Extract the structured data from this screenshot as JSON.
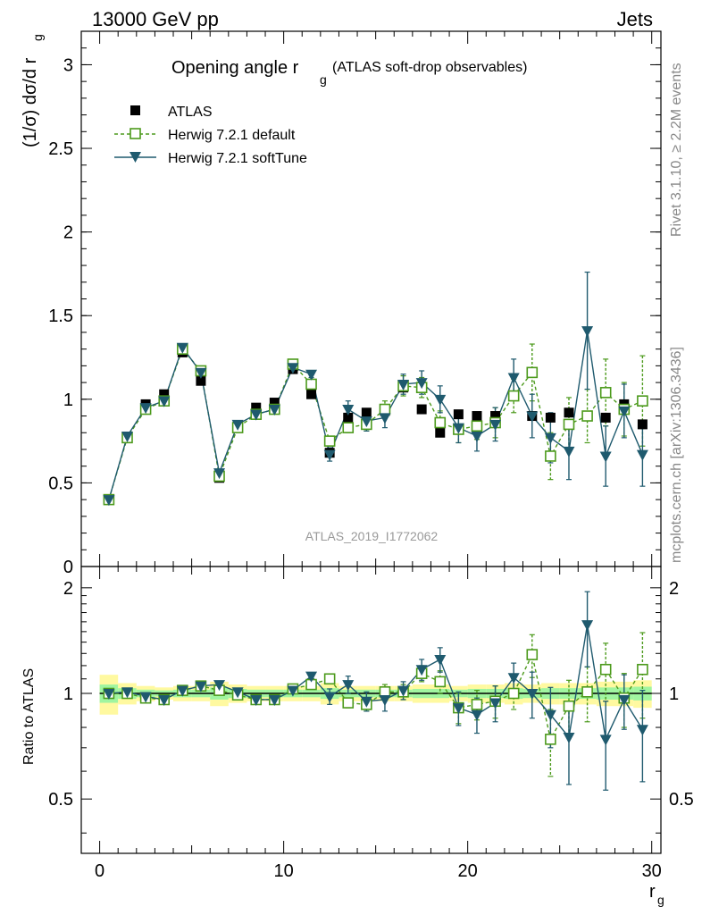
{
  "header": {
    "left": "13000 GeV pp",
    "right": "Jets"
  },
  "side_text": {
    "rivet": "Rivet 3.1.10, ≥ 2.2M events",
    "mcplots": "mcplots.cern.ch [arXiv:1306.3436]"
  },
  "colors": {
    "data": "#000000",
    "default": "#4c9a1c",
    "softtune": "#1f5a6e",
    "band_outer": "#fff9a0",
    "band_inner": "#a0f5a0"
  },
  "chart_data": [
    {
      "type": "scatter",
      "title": {
        "main": "Opening angle r",
        "sub": "g",
        "note": "(ATLAS soft-drop observables)"
      },
      "ylabel": "(1/σ) dσ/d r",
      "ylabel_sub": "g",
      "xlabel": "r",
      "xlabel_sub": "g",
      "watermark": "ATLAS_2019_I1772062",
      "xlim": [
        -1,
        30.5
      ],
      "ylim": [
        0,
        3.2
      ],
      "yticks": [
        0,
        0.5,
        1,
        1.5,
        2,
        2.5,
        3
      ],
      "ytick_labels": [
        "0",
        "0.5",
        "1",
        "1.5",
        "2",
        "2.5",
        "3"
      ],
      "legend": [
        "ATLAS",
        "Herwig 7.2.1 default",
        "Herwig 7.2.1 softTune"
      ],
      "x": [
        0.5,
        1.5,
        2.5,
        3.5,
        4.5,
        5.5,
        6.5,
        7.5,
        8.5,
        9.5,
        10.5,
        11.5,
        12.5,
        13.5,
        14.5,
        15.5,
        16.5,
        17.5,
        18.5,
        19.5,
        20.5,
        21.5,
        22.5,
        23.5,
        24.5,
        25.5,
        26.5,
        27.5,
        28.5,
        29.5
      ],
      "series": [
        {
          "name": "ATLAS",
          "values": [
            0.4,
            0.77,
            0.97,
            1.03,
            1.28,
            1.11,
            0.53,
            0.84,
            0.95,
            0.98,
            1.18,
            1.03,
            0.68,
            0.89,
            0.92,
            0.93,
            1.07,
            0.94,
            0.8,
            0.91,
            0.9,
            0.9,
            1.02,
            0.9,
            0.89,
            0.92,
            0.9,
            0.89,
            0.97,
            0.85
          ]
        },
        {
          "name": "Herwig 7.2.1 default",
          "values": [
            0.4,
            0.77,
            0.94,
            0.99,
            1.3,
            1.17,
            0.54,
            0.83,
            0.91,
            0.94,
            1.21,
            1.09,
            0.75,
            0.83,
            0.85,
            0.94,
            1.08,
            1.07,
            0.86,
            0.82,
            0.84,
            0.86,
            1.02,
            1.16,
            0.66,
            0.85,
            0.9,
            1.04,
            0.94,
            0.99
          ],
          "errors": [
            0.01,
            0.01,
            0.01,
            0.01,
            0.01,
            0.01,
            0.01,
            0.01,
            0.01,
            0.01,
            0.02,
            0.02,
            0.02,
            0.03,
            0.04,
            0.05,
            0.06,
            0.06,
            0.07,
            0.08,
            0.08,
            0.09,
            0.1,
            0.17,
            0.14,
            0.16,
            0.16,
            0.2,
            0.16,
            0.27
          ]
        },
        {
          "name": "Herwig 7.2.1 softTune",
          "values": [
            0.4,
            0.78,
            0.95,
            0.99,
            1.31,
            1.16,
            0.56,
            0.85,
            0.91,
            0.94,
            1.19,
            1.15,
            0.67,
            0.94,
            0.87,
            0.89,
            1.09,
            1.1,
            1.0,
            0.83,
            0.78,
            0.85,
            1.13,
            0.9,
            0.77,
            0.69,
            1.41,
            0.66,
            0.93,
            0.67
          ],
          "errors": [
            0.01,
            0.01,
            0.01,
            0.01,
            0.01,
            0.01,
            0.01,
            0.01,
            0.01,
            0.01,
            0.02,
            0.02,
            0.04,
            0.05,
            0.06,
            0.06,
            0.06,
            0.07,
            0.08,
            0.09,
            0.09,
            0.1,
            0.11,
            0.13,
            0.15,
            0.17,
            0.35,
            0.18,
            0.16,
            0.19
          ]
        }
      ]
    },
    {
      "type": "scatter",
      "ylabel": "Ratio to ATLAS",
      "ylim": [
        0.35,
        2.3
      ],
      "yscale": "log",
      "yticks": [
        0.5,
        1,
        2
      ],
      "ytick_labels": [
        "0.5",
        "1",
        "2"
      ],
      "xticks": [
        0,
        10,
        20,
        30
      ],
      "xtick_labels": [
        "0",
        "10",
        "20",
        "30"
      ],
      "reference": 1,
      "band_outer": [
        0.13,
        0.07,
        0.05,
        0.04,
        0.05,
        0.05,
        0.08,
        0.06,
        0.05,
        0.05,
        0.05,
        0.05,
        0.07,
        0.05,
        0.05,
        0.05,
        0.05,
        0.06,
        0.06,
        0.05,
        0.06,
        0.06,
        0.07,
        0.06,
        0.07,
        0.07,
        0.07,
        0.08,
        0.08,
        0.09
      ],
      "band_inner": [
        0.06,
        0.035,
        0.025,
        0.02,
        0.025,
        0.025,
        0.04,
        0.03,
        0.025,
        0.025,
        0.025,
        0.025,
        0.035,
        0.025,
        0.025,
        0.025,
        0.025,
        0.03,
        0.03,
        0.025,
        0.03,
        0.03,
        0.035,
        0.03,
        0.035,
        0.035,
        0.035,
        0.04,
        0.04,
        0.045
      ],
      "series": [
        {
          "name": "Herwig 7.2.1 default",
          "values": [
            1.0,
            1.0,
            0.97,
            0.96,
            1.02,
            1.05,
            1.02,
            0.99,
            0.96,
            0.96,
            1.03,
            1.06,
            1.1,
            0.94,
            0.93,
            1.01,
            1.01,
            1.14,
            1.08,
            0.91,
            0.93,
            0.95,
            1.0,
            1.29,
            0.74,
            0.92,
            1.01,
            1.17,
            0.97,
            1.17
          ],
          "errors": [
            0.01,
            0.01,
            0.01,
            0.01,
            0.01,
            0.01,
            0.02,
            0.01,
            0.01,
            0.01,
            0.02,
            0.02,
            0.03,
            0.03,
            0.04,
            0.05,
            0.05,
            0.06,
            0.08,
            0.09,
            0.09,
            0.1,
            0.1,
            0.18,
            0.16,
            0.17,
            0.18,
            0.22,
            0.17,
            0.32
          ]
        },
        {
          "name": "Herwig 7.2.1 softTune",
          "values": [
            1.0,
            1.01,
            0.98,
            0.96,
            1.02,
            1.05,
            1.06,
            1.01,
            0.96,
            0.96,
            1.02,
            1.12,
            0.98,
            1.06,
            0.95,
            0.96,
            1.02,
            1.17,
            1.25,
            0.91,
            0.87,
            0.94,
            1.11,
            1.0,
            0.87,
            0.75,
            1.57,
            0.74,
            0.96,
            0.79
          ],
          "errors": [
            0.01,
            0.01,
            0.01,
            0.01,
            0.01,
            0.01,
            0.02,
            0.01,
            0.01,
            0.01,
            0.02,
            0.02,
            0.05,
            0.06,
            0.06,
            0.07,
            0.06,
            0.08,
            0.1,
            0.1,
            0.1,
            0.11,
            0.11,
            0.15,
            0.17,
            0.2,
            0.38,
            0.21,
            0.17,
            0.23
          ]
        }
      ]
    }
  ]
}
